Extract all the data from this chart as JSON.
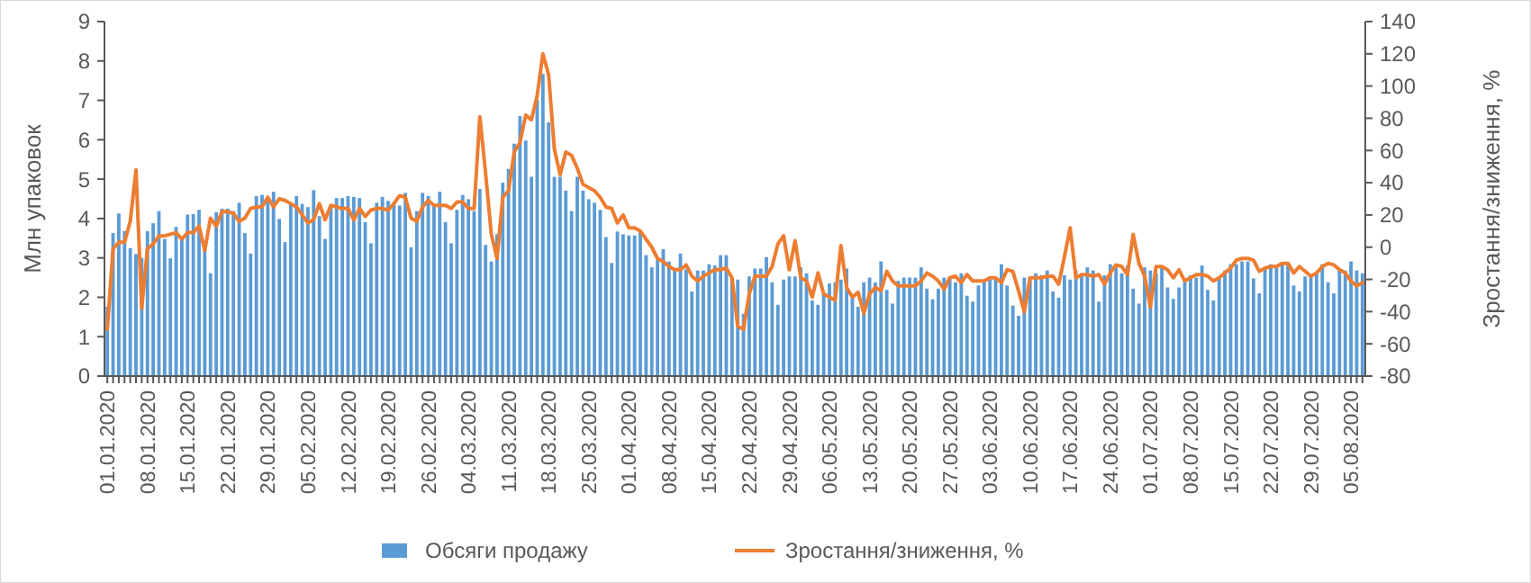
{
  "chart_data": {
    "type": "bar",
    "ylabel": "Млн упаковок",
    "y2label": "Зростання/зниження, %",
    "categories": [
      "01.01.2020",
      null,
      null,
      null,
      null,
      null,
      null,
      "08.01.2020",
      null,
      null,
      null,
      null,
      null,
      null,
      "15.01.2020",
      null,
      null,
      null,
      null,
      null,
      null,
      "22.01.2020",
      null,
      null,
      null,
      null,
      null,
      null,
      "29.01.2020",
      null,
      null,
      null,
      null,
      null,
      null,
      "05.02.2020",
      null,
      null,
      null,
      null,
      null,
      null,
      "12.02.2020",
      null,
      null,
      null,
      null,
      null,
      null,
      "19.02.2020",
      null,
      null,
      null,
      null,
      null,
      null,
      "26.02.2020",
      null,
      null,
      null,
      null,
      null,
      null,
      "04.03.2020",
      null,
      null,
      null,
      null,
      null,
      null,
      "11.03.2020",
      null,
      null,
      null,
      null,
      null,
      null,
      "18.03.2020",
      null,
      null,
      null,
      null,
      null,
      null,
      "25.03.2020",
      null,
      null,
      null,
      null,
      null,
      null,
      "01.04.2020",
      null,
      null,
      null,
      null,
      null,
      null,
      "08.04.2020",
      null,
      null,
      null,
      null,
      null,
      null,
      "15.04.2020",
      null,
      null,
      null,
      null,
      null,
      null,
      "22.04.2020",
      null,
      null,
      null,
      null,
      null,
      null,
      "29.04.2020",
      null,
      null,
      null,
      null,
      null,
      null,
      "06.05.2020",
      null,
      null,
      null,
      null,
      null,
      null,
      "13.05.2020",
      null,
      null,
      null,
      null,
      null,
      null,
      "20.05.2020",
      null,
      null,
      null,
      null,
      null,
      null,
      "27.05.2020",
      null,
      null,
      null,
      null,
      null,
      null,
      "03.06.2020",
      null,
      null,
      null,
      null,
      null,
      null,
      "10.06.2020",
      null,
      null,
      null,
      null,
      null,
      null,
      "17.06.2020",
      null,
      null,
      null,
      null,
      null,
      null,
      "24.06.2020",
      null,
      null,
      null,
      null,
      null,
      null,
      "01.07.2020",
      null,
      null,
      null,
      null,
      null,
      null,
      "08.07.2020",
      null,
      null,
      null,
      null,
      null,
      null,
      "15.07.2020",
      null,
      null,
      null,
      null,
      null,
      null,
      "22.07.2020",
      null,
      null,
      null,
      null,
      null,
      null,
      "29.07.2020",
      null,
      null,
      null,
      null,
      null,
      null,
      "05.08.2020",
      null,
      null
    ],
    "series": [
      {
        "name": "Обсяги продажу",
        "color": "#5b9bd5",
        "values": [
          1.76,
          3.63,
          4.13,
          3.68,
          3.25,
          3.1,
          3.0,
          3.68,
          3.88,
          4.19,
          3.48,
          2.99,
          3.79,
          3.53,
          4.1,
          4.11,
          4.22,
          3.37,
          2.61,
          4.16,
          4.25,
          4.25,
          4.19,
          4.4,
          3.63,
          3.11,
          4.57,
          4.6,
          4.48,
          4.68,
          3.99,
          3.4,
          4.37,
          4.57,
          4.37,
          4.29,
          4.72,
          4.06,
          3.48,
          4.29,
          4.52,
          4.52,
          4.57,
          4.55,
          4.52,
          3.91,
          3.37,
          4.4,
          4.55,
          4.45,
          4.37,
          4.33,
          4.65,
          3.27,
          4.19,
          4.65,
          4.57,
          4.37,
          4.68,
          3.91,
          3.37,
          4.22,
          4.6,
          4.49,
          4.19,
          4.75,
          3.33,
          2.91,
          3.6,
          4.91,
          5.26,
          5.9,
          6.6,
          5.98,
          5.06,
          7.01,
          7.67,
          6.44,
          5.06,
          5.06,
          4.71,
          4.19,
          5.06,
          4.71,
          4.49,
          4.4,
          4.22,
          3.53,
          2.87,
          3.67,
          3.6,
          3.57,
          3.57,
          3.68,
          3.07,
          2.76,
          2.99,
          3.22,
          2.91,
          2.68,
          3.11,
          2.71,
          2.15,
          2.68,
          2.68,
          2.84,
          2.81,
          3.07,
          3.07,
          2.45,
          2.45,
          1.58,
          2.53,
          2.73,
          2.73,
          3.02,
          2.38,
          1.81,
          2.45,
          2.53,
          2.53,
          2.76,
          2.61,
          1.92,
          1.81,
          2.1,
          2.35,
          2.38,
          2.45,
          2.73,
          1.99,
          1.76,
          2.38,
          2.5,
          2.38,
          2.91,
          2.19,
          1.84,
          2.42,
          2.5,
          2.5,
          2.5,
          2.76,
          2.22,
          1.95,
          2.22,
          2.5,
          2.5,
          2.38,
          2.61,
          2.04,
          1.89,
          2.3,
          2.41,
          2.45,
          2.5,
          2.84,
          2.3,
          1.79,
          1.53,
          2.5,
          2.5,
          2.61,
          2.56,
          2.68,
          2.15,
          1.99,
          2.56,
          2.45,
          2.68,
          2.61,
          2.76,
          2.68,
          1.89,
          2.56,
          2.84,
          2.76,
          2.61,
          2.81,
          2.22,
          1.84,
          2.76,
          2.68,
          2.61,
          2.76,
          2.25,
          1.96,
          2.25,
          2.41,
          2.56,
          2.5,
          2.81,
          2.19,
          1.92,
          2.5,
          2.68,
          2.84,
          2.84,
          2.91,
          2.91,
          2.48,
          2.1,
          2.76,
          2.84,
          2.81,
          2.84,
          2.87,
          2.3,
          2.15,
          2.53,
          2.56,
          2.61,
          2.84,
          2.38,
          2.1,
          2.68,
          2.68,
          2.91,
          2.68,
          2.61
        ]
      },
      {
        "name": "Зростання/зниження, %",
        "type": "line",
        "axis": "y2",
        "color": "#ed7d31",
        "values": [
          -51,
          -1,
          3,
          3,
          16,
          48,
          -38,
          -1,
          2,
          7,
          7,
          8,
          9,
          5,
          9,
          9,
          13,
          -2,
          18,
          13,
          22,
          22,
          21,
          16,
          18,
          24,
          25,
          25,
          31,
          25,
          30,
          29,
          27,
          25,
          20,
          15,
          17,
          27,
          17,
          26,
          25,
          24,
          24,
          17,
          24,
          19,
          23,
          24,
          24,
          23,
          27,
          32,
          31,
          18,
          16,
          25,
          29,
          26,
          26,
          26,
          24,
          28,
          28,
          24,
          24,
          81,
          46,
          8,
          -7,
          31,
          35,
          59,
          65,
          82,
          79,
          94,
          120,
          107,
          61,
          45,
          59,
          57,
          49,
          39,
          37,
          35,
          31,
          25,
          24,
          15,
          20,
          12,
          12,
          10,
          5,
          0,
          -7,
          -9,
          -12,
          -14,
          -14,
          -11,
          -18,
          -21,
          -18,
          -16,
          -14,
          -14,
          -13,
          -19,
          -49,
          -51,
          -29,
          -18,
          -18,
          -18,
          -12,
          2,
          7,
          -14,
          4,
          -19,
          -21,
          -31,
          -16,
          -29,
          -31,
          -33,
          1,
          -25,
          -31,
          -28,
          -41,
          -29,
          -25,
          -27,
          -15,
          -21,
          -24,
          -24,
          -24,
          -24,
          -21,
          -16,
          -18,
          -21,
          -26,
          -19,
          -18,
          -22,
          -17,
          -21,
          -21,
          -21,
          -19,
          -19,
          -22,
          -14,
          -15,
          -27,
          -40,
          -19,
          -19,
          -19,
          -18,
          -18,
          -23,
          -6,
          12,
          -19,
          -17,
          -17,
          -18,
          -17,
          -23,
          -16,
          -11,
          -12,
          -17,
          8,
          -10,
          -18,
          -37,
          -12,
          -12,
          -14,
          -19,
          -14,
          -21,
          -19,
          -17,
          -17,
          -18,
          -21,
          -19,
          -16,
          -13,
          -8,
          -7,
          -7,
          -8,
          -15,
          -13,
          -12,
          -12,
          -10,
          -10,
          -16,
          -12,
          -15,
          -18,
          -16,
          -12,
          -10,
          -11,
          -14,
          -16,
          -21,
          -24,
          -22
        ]
      }
    ],
    "ylim": [
      0,
      9
    ],
    "yticks": [
      0,
      1,
      2,
      3,
      4,
      5,
      6,
      7,
      8,
      9
    ],
    "y2lim": [
      -80,
      140
    ],
    "y2ticks": [
      -80,
      -60,
      -40,
      -20,
      0,
      20,
      40,
      60,
      80,
      100,
      120,
      140
    ],
    "legend": "bottom"
  }
}
